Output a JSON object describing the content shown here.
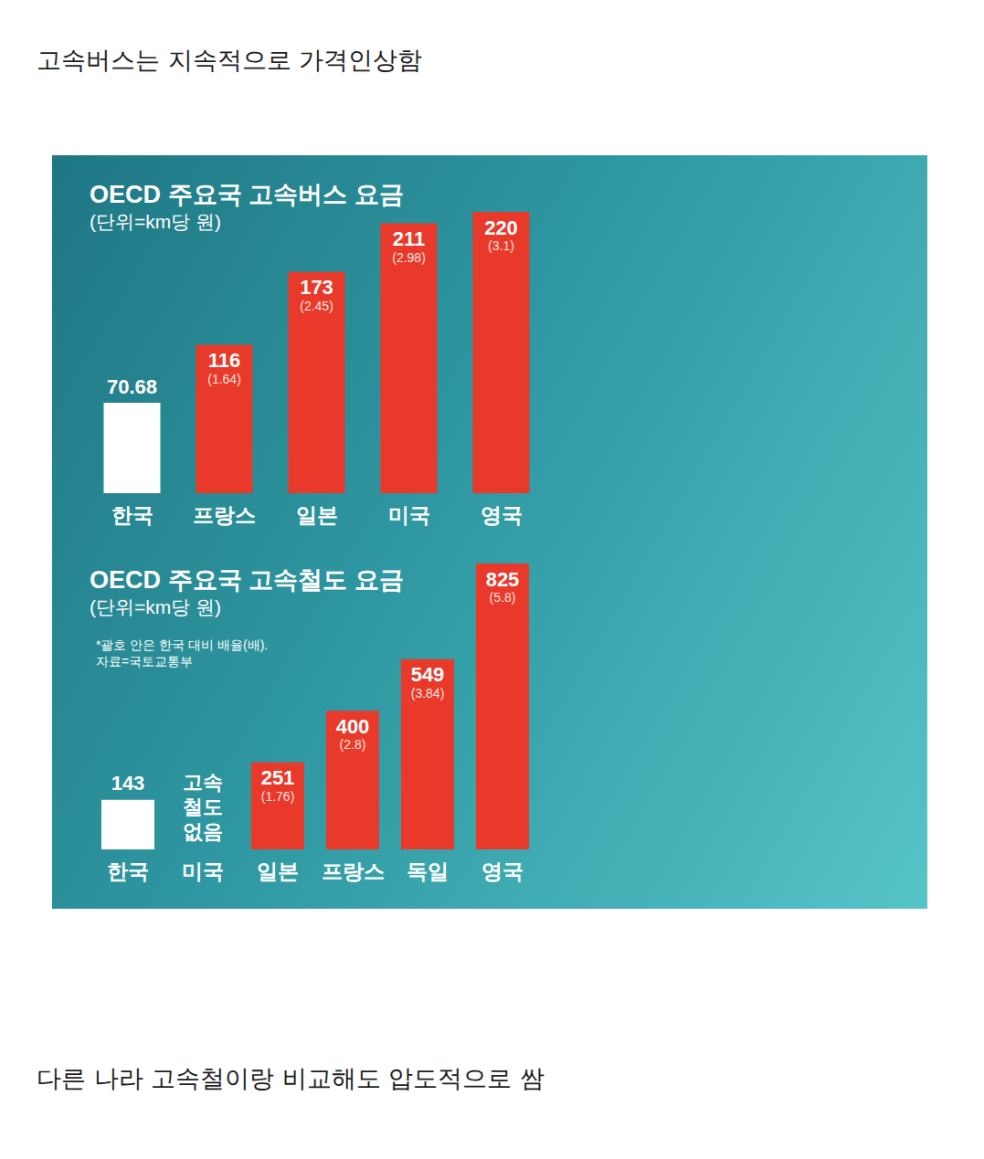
{
  "captions": {
    "top": "고속버스는 지속적으로 가격인상함",
    "bottom": "다른 나라 고속철이랑 비교해도 압도적으로 쌈"
  },
  "chart_data": [
    {
      "type": "bar",
      "title": "OECD 주요국 고속버스 요금",
      "subtitle": "(단위=km당 원)",
      "categories": [
        "한국",
        "프랑스",
        "일본",
        "미국",
        "영국"
      ],
      "values": [
        70.68,
        116,
        173,
        211,
        220
      ],
      "ratio_labels": [
        null,
        "(1.64)",
        "(2.45)",
        "(2.98)",
        "(3.1)"
      ],
      "colors": [
        "#ffffff",
        "#e8392b",
        "#e8392b",
        "#e8392b",
        "#e8392b"
      ],
      "ylim": [
        0,
        220
      ],
      "yticks": [
        0,
        220
      ],
      "grid": false,
      "data_labels": true,
      "tick_labels": "x"
    },
    {
      "type": "bar",
      "title": "OECD 주요국 고속철도 요금",
      "subtitle": "(단위=km당 원)",
      "notes": [
        "*괄호 안은 한국 대비 배율(배).",
        "자료=국토교통부"
      ],
      "categories": [
        "한국",
        "미국",
        "일본",
        "프랑스",
        "독일",
        "영국"
      ],
      "values": [
        143,
        null,
        251,
        400,
        549,
        825
      ],
      "ratio_labels": [
        null,
        null,
        "(1.76)",
        "(2.8)",
        "(3.84)",
        "(5.8)"
      ],
      "annotations": [
        {
          "category": "미국",
          "text": "고속\n철도\n없음"
        }
      ],
      "colors": [
        "#ffffff",
        "#e8392b",
        "#e8392b",
        "#e8392b",
        "#e8392b",
        "#e8392b"
      ],
      "ylim": [
        0,
        825
      ],
      "yticks": [
        0,
        825
      ],
      "grid": false,
      "data_labels": true,
      "tick_labels": "x"
    }
  ]
}
